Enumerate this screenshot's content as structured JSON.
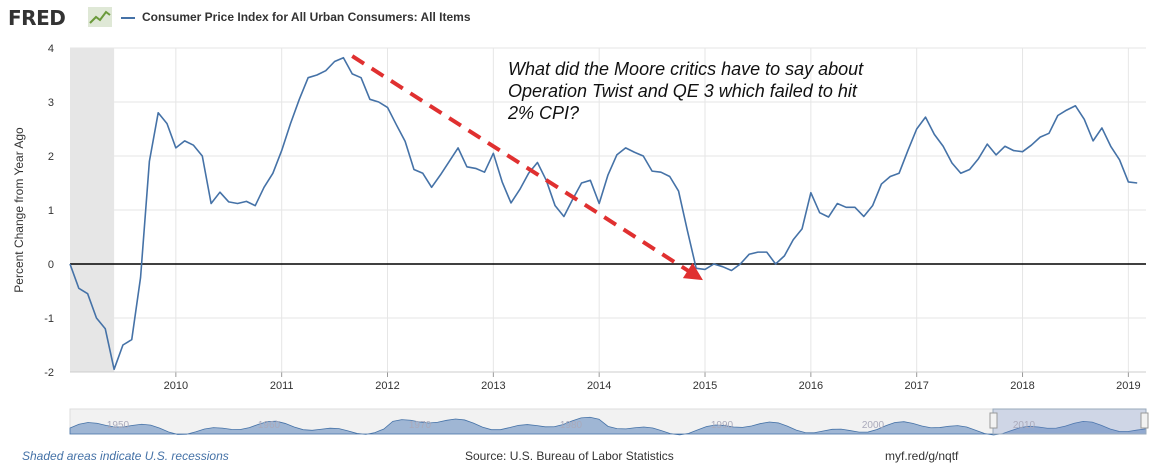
{
  "header": {
    "logo_text": "FRED",
    "series_title": "Consumer Price Index for All Urban Consumers: All Items",
    "series_color": "#4572a7"
  },
  "annotation": {
    "text": "What did the Moore critics have to say about Operation Twist and QE 3 which failed to hit 2% CPI?",
    "arrow_color": "#e03030"
  },
  "footer": {
    "recession_note": "Shaded areas indicate U.S. recessions",
    "source": "Source: U.S. Bureau of Labor Statistics",
    "short_url": "myf.red/g/nqtf"
  },
  "navigator": {
    "tick_labels": [
      "1950",
      "1960",
      "1970",
      "1980",
      "1990",
      "2000",
      "2010"
    ]
  },
  "chart_data": {
    "type": "line",
    "ylabel": "Percent Change from Year Ago",
    "xlabel": "",
    "ylim": [
      -2,
      4
    ],
    "yticks": [
      -2,
      -1,
      0,
      1,
      2,
      3,
      4
    ],
    "xticks": [
      "2010",
      "2011",
      "2012",
      "2013",
      "2014",
      "2015",
      "2016",
      "2017",
      "2018",
      "2019"
    ],
    "xrange": [
      "2009-01",
      "2019-03"
    ],
    "grid": true,
    "recessions": [
      {
        "start": "2009-01",
        "end": "2009-06"
      }
    ],
    "series": [
      {
        "name": "Consumer Price Index for All Urban Consumers: All Items",
        "color": "#4572a7",
        "points": [
          [
            "2009-01",
            0.0
          ],
          [
            "2009-02",
            -0.45
          ],
          [
            "2009-03",
            -0.55
          ],
          [
            "2009-04",
            -1.0
          ],
          [
            "2009-05",
            -1.2
          ],
          [
            "2009-06",
            -1.95
          ],
          [
            "2009-07",
            -1.5
          ],
          [
            "2009-08",
            -1.4
          ],
          [
            "2009-09",
            -0.25
          ],
          [
            "2009-10",
            1.9
          ],
          [
            "2009-11",
            2.8
          ],
          [
            "2009-12",
            2.6
          ],
          [
            "2010-01",
            2.15
          ],
          [
            "2010-02",
            2.28
          ],
          [
            "2010-03",
            2.2
          ],
          [
            "2010-04",
            2.0
          ],
          [
            "2010-05",
            1.12
          ],
          [
            "2010-06",
            1.33
          ],
          [
            "2010-07",
            1.15
          ],
          [
            "2010-08",
            1.12
          ],
          [
            "2010-09",
            1.16
          ],
          [
            "2010-10",
            1.08
          ],
          [
            "2010-11",
            1.42
          ],
          [
            "2010-12",
            1.68
          ],
          [
            "2011-01",
            2.1
          ],
          [
            "2011-02",
            2.6
          ],
          [
            "2011-03",
            3.05
          ],
          [
            "2011-04",
            3.45
          ],
          [
            "2011-05",
            3.5
          ],
          [
            "2011-06",
            3.58
          ],
          [
            "2011-07",
            3.75
          ],
          [
            "2011-08",
            3.82
          ],
          [
            "2011-09",
            3.52
          ],
          [
            "2011-10",
            3.45
          ],
          [
            "2011-11",
            3.05
          ],
          [
            "2011-12",
            3.0
          ],
          [
            "2012-01",
            2.9
          ],
          [
            "2012-02",
            2.58
          ],
          [
            "2012-03",
            2.27
          ],
          [
            "2012-04",
            1.75
          ],
          [
            "2012-05",
            1.68
          ],
          [
            "2012-06",
            1.42
          ],
          [
            "2012-07",
            1.65
          ],
          [
            "2012-08",
            1.9
          ],
          [
            "2012-09",
            2.15
          ],
          [
            "2012-10",
            1.8
          ],
          [
            "2012-11",
            1.77
          ],
          [
            "2012-12",
            1.7
          ],
          [
            "2013-01",
            2.05
          ],
          [
            "2013-02",
            1.52
          ],
          [
            "2013-03",
            1.13
          ],
          [
            "2013-04",
            1.38
          ],
          [
            "2013-05",
            1.68
          ],
          [
            "2013-06",
            1.88
          ],
          [
            "2013-07",
            1.55
          ],
          [
            "2013-08",
            1.08
          ],
          [
            "2013-09",
            0.88
          ],
          [
            "2013-10",
            1.2
          ],
          [
            "2013-11",
            1.5
          ],
          [
            "2013-12",
            1.55
          ],
          [
            "2014-01",
            1.12
          ],
          [
            "2014-02",
            1.65
          ],
          [
            "2014-03",
            2.02
          ],
          [
            "2014-04",
            2.15
          ],
          [
            "2014-05",
            2.07
          ],
          [
            "2014-06",
            2.0
          ],
          [
            "2014-07",
            1.72
          ],
          [
            "2014-08",
            1.7
          ],
          [
            "2014-09",
            1.62
          ],
          [
            "2014-10",
            1.35
          ],
          [
            "2014-11",
            0.62
          ],
          [
            "2014-12",
            -0.08
          ],
          [
            "2015-01",
            -0.1
          ],
          [
            "2015-02",
            0.0
          ],
          [
            "2015-03",
            -0.05
          ],
          [
            "2015-04",
            -0.12
          ],
          [
            "2015-05",
            0.0
          ],
          [
            "2015-06",
            0.18
          ],
          [
            "2015-07",
            0.22
          ],
          [
            "2015-08",
            0.22
          ],
          [
            "2015-09",
            0.0
          ],
          [
            "2015-10",
            0.15
          ],
          [
            "2015-11",
            0.45
          ],
          [
            "2015-12",
            0.65
          ],
          [
            "2016-01",
            1.32
          ],
          [
            "2016-02",
            0.95
          ],
          [
            "2016-03",
            0.87
          ],
          [
            "2016-04",
            1.12
          ],
          [
            "2016-05",
            1.05
          ],
          [
            "2016-06",
            1.05
          ],
          [
            "2016-07",
            0.88
          ],
          [
            "2016-08",
            1.08
          ],
          [
            "2016-09",
            1.48
          ],
          [
            "2016-10",
            1.62
          ],
          [
            "2016-11",
            1.68
          ],
          [
            "2016-12",
            2.1
          ],
          [
            "2017-01",
            2.5
          ],
          [
            "2017-02",
            2.72
          ],
          [
            "2017-03",
            2.4
          ],
          [
            "2017-04",
            2.18
          ],
          [
            "2017-05",
            1.87
          ],
          [
            "2017-06",
            1.68
          ],
          [
            "2017-07",
            1.75
          ],
          [
            "2017-08",
            1.95
          ],
          [
            "2017-09",
            2.22
          ],
          [
            "2017-10",
            2.02
          ],
          [
            "2017-11",
            2.18
          ],
          [
            "2017-12",
            2.1
          ],
          [
            "2018-01",
            2.08
          ],
          [
            "2018-02",
            2.2
          ],
          [
            "2018-03",
            2.35
          ],
          [
            "2018-04",
            2.42
          ],
          [
            "2018-05",
            2.75
          ],
          [
            "2018-06",
            2.85
          ],
          [
            "2018-07",
            2.93
          ],
          [
            "2018-08",
            2.68
          ],
          [
            "2018-09",
            2.28
          ],
          [
            "2018-10",
            2.52
          ],
          [
            "2018-11",
            2.18
          ],
          [
            "2018-12",
            1.93
          ],
          [
            "2019-01",
            1.52
          ],
          [
            "2019-02",
            1.5
          ]
        ]
      }
    ]
  }
}
